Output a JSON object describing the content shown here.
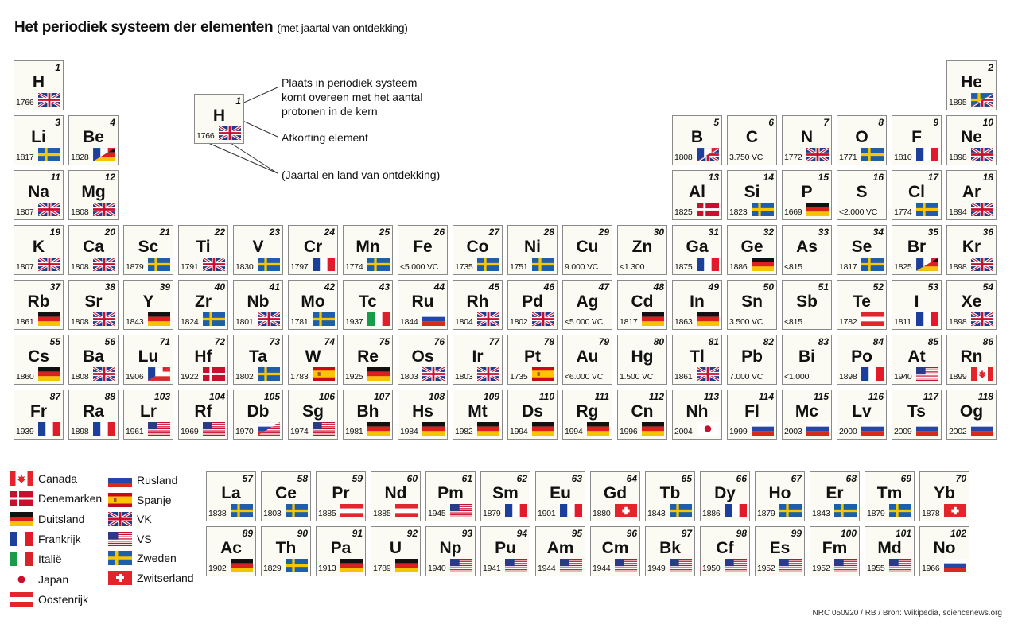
{
  "title": "Het periodiek systeem der elementen",
  "subtitle": "(met jaartal van ontdekking)",
  "elements": [
    {
      "n": "1",
      "s": "H",
      "y": "1766",
      "f": "uk"
    },
    {
      "n": "2",
      "s": "He",
      "y": "1895",
      "f": "se-uk"
    },
    {
      "n": "3",
      "s": "Li",
      "y": "1817",
      "f": "se"
    },
    {
      "n": "4",
      "s": "Be",
      "y": "1828",
      "f": "fr-de"
    },
    {
      "n": "5",
      "s": "B",
      "y": "1808",
      "f": "fr-uk"
    },
    {
      "n": "6",
      "s": "C",
      "y": "3.750 VC",
      "f": ""
    },
    {
      "n": "7",
      "s": "N",
      "y": "1772",
      "f": "uk"
    },
    {
      "n": "8",
      "s": "O",
      "y": "1771",
      "f": "se"
    },
    {
      "n": "9",
      "s": "F",
      "y": "1810",
      "f": "fr"
    },
    {
      "n": "10",
      "s": "Ne",
      "y": "1898",
      "f": "uk"
    },
    {
      "n": "11",
      "s": "Na",
      "y": "1807",
      "f": "uk"
    },
    {
      "n": "12",
      "s": "Mg",
      "y": "1808",
      "f": "uk"
    },
    {
      "n": "13",
      "s": "Al",
      "y": "1825",
      "f": "dk"
    },
    {
      "n": "14",
      "s": "Si",
      "y": "1823",
      "f": "se"
    },
    {
      "n": "15",
      "s": "P",
      "y": "1669",
      "f": "de"
    },
    {
      "n": "16",
      "s": "S",
      "y": "<2.000 VC",
      "f": ""
    },
    {
      "n": "17",
      "s": "Cl",
      "y": "1774",
      "f": "se"
    },
    {
      "n": "18",
      "s": "Ar",
      "y": "1894",
      "f": "uk"
    },
    {
      "n": "19",
      "s": "K",
      "y": "1807",
      "f": "uk"
    },
    {
      "n": "20",
      "s": "Ca",
      "y": "1808",
      "f": "uk"
    },
    {
      "n": "21",
      "s": "Sc",
      "y": "1879",
      "f": "se"
    },
    {
      "n": "22",
      "s": "Ti",
      "y": "1791",
      "f": "uk"
    },
    {
      "n": "23",
      "s": "V",
      "y": "1830",
      "f": "se"
    },
    {
      "n": "24",
      "s": "Cr",
      "y": "1797",
      "f": "fr"
    },
    {
      "n": "25",
      "s": "Mn",
      "y": "1774",
      "f": "se"
    },
    {
      "n": "26",
      "s": "Fe",
      "y": "<5.000 VC",
      "f": ""
    },
    {
      "n": "27",
      "s": "Co",
      "y": "1735",
      "f": "se"
    },
    {
      "n": "28",
      "s": "Ni",
      "y": "1751",
      "f": "se"
    },
    {
      "n": "29",
      "s": "Cu",
      "y": "9.000 VC",
      "f": ""
    },
    {
      "n": "30",
      "s": "Zn",
      "y": "<1.300",
      "f": ""
    },
    {
      "n": "31",
      "s": "Ga",
      "y": "1875",
      "f": "fr"
    },
    {
      "n": "32",
      "s": "Ge",
      "y": "1886",
      "f": "de"
    },
    {
      "n": "33",
      "s": "As",
      "y": "<815",
      "f": ""
    },
    {
      "n": "34",
      "s": "Se",
      "y": "1817",
      "f": "se"
    },
    {
      "n": "35",
      "s": "Br",
      "y": "1825",
      "f": "fr-de"
    },
    {
      "n": "36",
      "s": "Kr",
      "y": "1898",
      "f": "uk"
    },
    {
      "n": "37",
      "s": "Rb",
      "y": "1861",
      "f": "de"
    },
    {
      "n": "38",
      "s": "Sr",
      "y": "1808",
      "f": "uk"
    },
    {
      "n": "39",
      "s": "Y",
      "y": "1843",
      "f": "de"
    },
    {
      "n": "40",
      "s": "Zr",
      "y": "1824",
      "f": "se"
    },
    {
      "n": "41",
      "s": "Nb",
      "y": "1801",
      "f": "uk"
    },
    {
      "n": "42",
      "s": "Mo",
      "y": "1781",
      "f": "se"
    },
    {
      "n": "43",
      "s": "Tc",
      "y": "1937",
      "f": "it"
    },
    {
      "n": "44",
      "s": "Ru",
      "y": "1844",
      "f": "ru"
    },
    {
      "n": "45",
      "s": "Rh",
      "y": "1804",
      "f": "uk"
    },
    {
      "n": "46",
      "s": "Pd",
      "y": "1802",
      "f": "uk"
    },
    {
      "n": "47",
      "s": "Ag",
      "y": "<5.000 VC",
      "f": ""
    },
    {
      "n": "48",
      "s": "Cd",
      "y": "1817",
      "f": "de"
    },
    {
      "n": "49",
      "s": "In",
      "y": "1863",
      "f": "de"
    },
    {
      "n": "50",
      "s": "Sn",
      "y": "3.500 VC",
      "f": ""
    },
    {
      "n": "51",
      "s": "Sb",
      "y": "<815",
      "f": ""
    },
    {
      "n": "52",
      "s": "Te",
      "y": "1782",
      "f": "at"
    },
    {
      "n": "53",
      "s": "I",
      "y": "1811",
      "f": "fr"
    },
    {
      "n": "54",
      "s": "Xe",
      "y": "1898",
      "f": "uk"
    },
    {
      "n": "55",
      "s": "Cs",
      "y": "1860",
      "f": "de"
    },
    {
      "n": "56",
      "s": "Ba",
      "y": "1808",
      "f": "uk"
    },
    {
      "n": "71",
      "s": "Lu",
      "y": "1906",
      "f": "fr-at"
    },
    {
      "n": "72",
      "s": "Hf",
      "y": "1922",
      "f": "dk"
    },
    {
      "n": "73",
      "s": "Ta",
      "y": "1802",
      "f": "se"
    },
    {
      "n": "74",
      "s": "W",
      "y": "1783",
      "f": "es"
    },
    {
      "n": "75",
      "s": "Re",
      "y": "1925",
      "f": "de"
    },
    {
      "n": "76",
      "s": "Os",
      "y": "1803",
      "f": "uk"
    },
    {
      "n": "77",
      "s": "Ir",
      "y": "1803",
      "f": "uk"
    },
    {
      "n": "78",
      "s": "Pt",
      "y": "1735",
      "f": "es"
    },
    {
      "n": "79",
      "s": "Au",
      "y": "<6.000 VC",
      "f": ""
    },
    {
      "n": "80",
      "s": "Hg",
      "y": "1.500 VC",
      "f": ""
    },
    {
      "n": "81",
      "s": "Tl",
      "y": "1861",
      "f": "uk"
    },
    {
      "n": "82",
      "s": "Pb",
      "y": "7.000 VC",
      "f": ""
    },
    {
      "n": "83",
      "s": "Bi",
      "y": "<1.000",
      "f": ""
    },
    {
      "n": "84",
      "s": "Po",
      "y": "1898",
      "f": "fr"
    },
    {
      "n": "85",
      "s": "At",
      "y": "1940",
      "f": "us"
    },
    {
      "n": "86",
      "s": "Rn",
      "y": "1899",
      "f": "ca"
    },
    {
      "n": "87",
      "s": "Fr",
      "y": "1939",
      "f": "fr"
    },
    {
      "n": "88",
      "s": "Ra",
      "y": "1898",
      "f": "fr"
    },
    {
      "n": "103",
      "s": "Lr",
      "y": "1961",
      "f": "us"
    },
    {
      "n": "104",
      "s": "Rf",
      "y": "1969",
      "f": "us"
    },
    {
      "n": "105",
      "s": "Db",
      "y": "1970",
      "f": "ru-us"
    },
    {
      "n": "106",
      "s": "Sg",
      "y": "1974",
      "f": "us"
    },
    {
      "n": "107",
      "s": "Bh",
      "y": "1981",
      "f": "de"
    },
    {
      "n": "108",
      "s": "Hs",
      "y": "1984",
      "f": "de"
    },
    {
      "n": "109",
      "s": "Mt",
      "y": "1982",
      "f": "de"
    },
    {
      "n": "110",
      "s": "Ds",
      "y": "1994",
      "f": "de"
    },
    {
      "n": "111",
      "s": "Rg",
      "y": "1994",
      "f": "de"
    },
    {
      "n": "112",
      "s": "Cn",
      "y": "1996",
      "f": "de"
    },
    {
      "n": "113",
      "s": "Nh",
      "y": "2004",
      "f": "jp"
    },
    {
      "n": "114",
      "s": "Fl",
      "y": "1999",
      "f": "ru"
    },
    {
      "n": "115",
      "s": "Mc",
      "y": "2003",
      "f": "ru"
    },
    {
      "n": "116",
      "s": "Lv",
      "y": "2000",
      "f": "ru"
    },
    {
      "n": "117",
      "s": "Ts",
      "y": "2009",
      "f": "ru"
    },
    {
      "n": "118",
      "s": "Og",
      "y": "2002",
      "f": "ru"
    },
    {
      "n": "57",
      "s": "La",
      "y": "1838",
      "f": "se"
    },
    {
      "n": "58",
      "s": "Ce",
      "y": "1803",
      "f": "se"
    },
    {
      "n": "59",
      "s": "Pr",
      "y": "1885",
      "f": "at"
    },
    {
      "n": "60",
      "s": "Nd",
      "y": "1885",
      "f": "at"
    },
    {
      "n": "61",
      "s": "Pm",
      "y": "1945",
      "f": "us"
    },
    {
      "n": "62",
      "s": "Sm",
      "y": "1879",
      "f": "fr"
    },
    {
      "n": "63",
      "s": "Eu",
      "y": "1901",
      "f": "fr"
    },
    {
      "n": "64",
      "s": "Gd",
      "y": "1880",
      "f": "ch"
    },
    {
      "n": "65",
      "s": "Tb",
      "y": "1843",
      "f": "se"
    },
    {
      "n": "66",
      "s": "Dy",
      "y": "1886",
      "f": "fr"
    },
    {
      "n": "67",
      "s": "Ho",
      "y": "1879",
      "f": "se"
    },
    {
      "n": "68",
      "s": "Er",
      "y": "1843",
      "f": "se"
    },
    {
      "n": "69",
      "s": "Tm",
      "y": "1879",
      "f": "se"
    },
    {
      "n": "70",
      "s": "Yb",
      "y": "1878",
      "f": "ch"
    },
    {
      "n": "89",
      "s": "Ac",
      "y": "1902",
      "f": "de"
    },
    {
      "n": "90",
      "s": "Th",
      "y": "1829",
      "f": "se"
    },
    {
      "n": "91",
      "s": "Pa",
      "y": "1913",
      "f": "de"
    },
    {
      "n": "92",
      "s": "U",
      "y": "1789",
      "f": "de"
    },
    {
      "n": "93",
      "s": "Np",
      "y": "1940",
      "f": "us"
    },
    {
      "n": "94",
      "s": "Pu",
      "y": "1941",
      "f": "us"
    },
    {
      "n": "95",
      "s": "Am",
      "y": "1944",
      "f": "us"
    },
    {
      "n": "96",
      "s": "Cm",
      "y": "1944",
      "f": "us"
    },
    {
      "n": "97",
      "s": "Bk",
      "y": "1949",
      "f": "us"
    },
    {
      "n": "98",
      "s": "Cf",
      "y": "1950",
      "f": "us"
    },
    {
      "n": "99",
      "s": "Es",
      "y": "1952",
      "f": "us"
    },
    {
      "n": "100",
      "s": "Fm",
      "y": "1952",
      "f": "us"
    },
    {
      "n": "101",
      "s": "Md",
      "y": "1955",
      "f": "us"
    },
    {
      "n": "102",
      "s": "No",
      "y": "1966",
      "f": "ru"
    }
  ],
  "key": {
    "number": "1",
    "symbol": "H",
    "year": "1766",
    "flag": "uk",
    "label_position": "Plaats in periodiek systeem",
    "label_position_2": "komt overeen met het aantal",
    "label_position_3": "protonen in de kern",
    "label_symbol": "Afkorting element",
    "label_year": "(Jaartal en land van ontdekking)"
  },
  "legend": [
    {
      "code": "ca",
      "label": "Canada"
    },
    {
      "code": "dk",
      "label": "Denemarken"
    },
    {
      "code": "de",
      "label": "Duitsland"
    },
    {
      "code": "fr",
      "label": "Frankrijk"
    },
    {
      "code": "it",
      "label": "Italië"
    },
    {
      "code": "jp",
      "label": "Japan"
    },
    {
      "code": "at",
      "label": "Oostenrijk"
    },
    {
      "code": "ru",
      "label": "Rusland"
    },
    {
      "code": "es",
      "label": "Spanje"
    },
    {
      "code": "uk",
      "label": "VK"
    },
    {
      "code": "us",
      "label": "VS"
    },
    {
      "code": "se",
      "label": "Zweden"
    },
    {
      "code": "ch",
      "label": "Zwitserland"
    }
  ],
  "credit": "NRC 050920 / RB / Bron: Wikipedia, sciencenews.org",
  "colors": {
    "cell_bg": "#fbfbf4",
    "cell_border": "#8a8a8a",
    "text": "#111111"
  }
}
